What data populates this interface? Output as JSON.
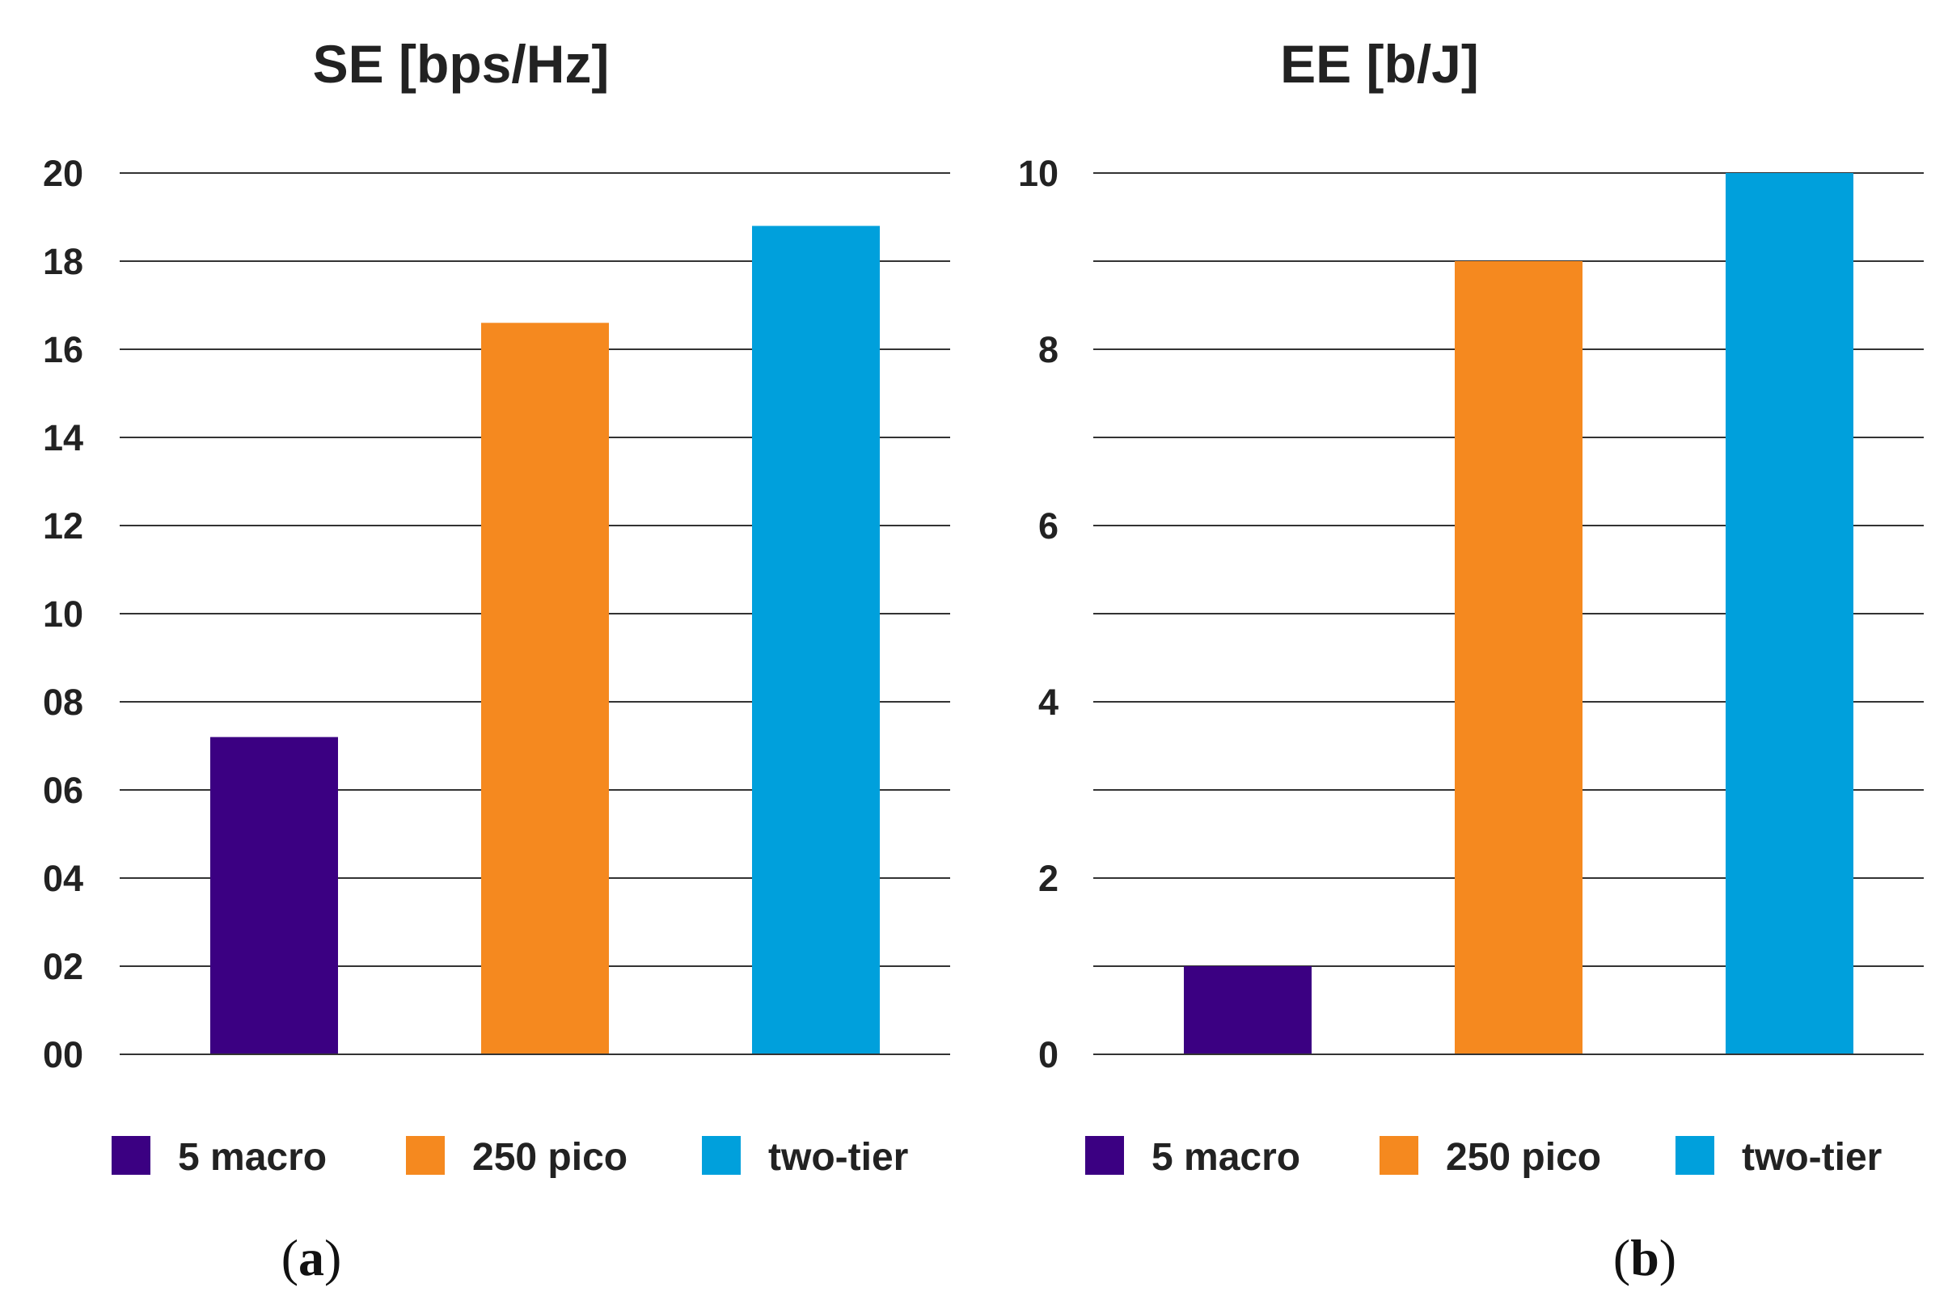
{
  "chart_data": [
    {
      "type": "bar",
      "title": "SE [bps/Hz]",
      "categories": [
        "5 macro",
        "250 pico",
        "two-tier"
      ],
      "values": [
        7.2,
        16.6,
        18.8
      ],
      "colors": [
        "#3b0082",
        "#f5891f",
        "#00a0dc"
      ],
      "ylim": [
        0,
        20
      ],
      "yticks": [
        0,
        2,
        4,
        6,
        8,
        10,
        12,
        14,
        16,
        18,
        20
      ],
      "ytick_labels": [
        "00",
        "02",
        "04",
        "06",
        "08",
        "10",
        "12",
        "14",
        "16",
        "18",
        "20"
      ],
      "grid": true,
      "xlabel": "",
      "ylabel": "",
      "legend": [
        "5 macro",
        "250 pico",
        "two-tier"
      ],
      "legend_position": "bottom",
      "panel_label": {
        "open": "(",
        "letter": "a",
        "close": ")"
      }
    },
    {
      "type": "bar",
      "title": "EE [b/J]",
      "categories": [
        "5 macro",
        "250 pico",
        "two-tier"
      ],
      "values": [
        1,
        9,
        10
      ],
      "colors": [
        "#3b0082",
        "#f5891f",
        "#00a0dc"
      ],
      "ylim": [
        0,
        10
      ],
      "yticks": [
        0,
        1,
        2,
        3,
        4,
        5,
        6,
        7,
        8,
        9,
        10
      ],
      "ytick_labels": [
        "0",
        "",
        "2",
        "",
        "4",
        "",
        "6",
        "",
        "8",
        "",
        "10"
      ],
      "grid": true,
      "xlabel": "",
      "ylabel": "",
      "legend": [
        "5 macro",
        "250 pico",
        "two-tier"
      ],
      "legend_position": "bottom",
      "panel_label": {
        "open": "(",
        "letter": "b",
        "close": ")"
      }
    }
  ]
}
